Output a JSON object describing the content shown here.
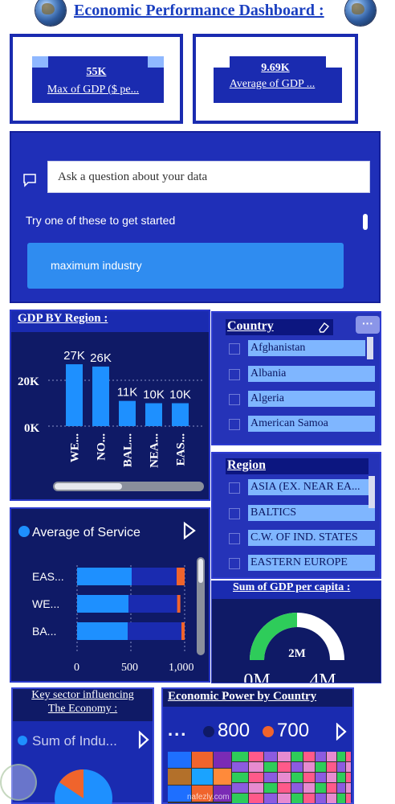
{
  "header": {
    "title": "Economic Performance Dashboard :"
  },
  "kpis": [
    {
      "value": "55K",
      "label": "Max of GDP ($ pe..."
    },
    {
      "value": "9.69K",
      "label": "Average of GDP ..."
    }
  ],
  "qna": {
    "placeholder": "Ask a question about your data",
    "tip": "Try one of these to get started",
    "suggestion": "maximum industry"
  },
  "gdp_by_region": {
    "title": "GDP BY Region :",
    "y_ticks": [
      "20K",
      "0K"
    ],
    "categories": [
      "WE...",
      "NO...",
      "BAL...",
      "NEA...",
      "EAS..."
    ],
    "value_labels": [
      "27K",
      "26K",
      "11K",
      "10K",
      "10K"
    ]
  },
  "country_slicer": {
    "title": "Country",
    "items": [
      "Afghanistan",
      "Albania",
      "Algeria",
      "American Samoa"
    ]
  },
  "region_slicer": {
    "title": "Region",
    "items": [
      "ASIA (EX. NEAR EA...",
      "BALTICS",
      "C.W. OF IND. STATES",
      "EASTERN EUROPE"
    ]
  },
  "service_chart": {
    "legend": "Average of Service",
    "categories": [
      "EAS...",
      "WE...",
      "BA..."
    ],
    "x_ticks": [
      "0",
      "500",
      "1,000"
    ]
  },
  "gauge": {
    "title": "Sum of GDP per capita :",
    "value": "2M",
    "min": "0M",
    "max": "4M"
  },
  "key_sector": {
    "title_line1": "Key sector influencing",
    "title_line2": "The Economy :",
    "legend": "Sum of Indu..."
  },
  "economic_power": {
    "title": "Economic Power by Country",
    "ellipsis": "...",
    "legend": [
      "800",
      "700"
    ]
  },
  "watermark": "nafezly.com",
  "colors": {
    "primary_blue": "#1a2bb0",
    "panel_dark": "#0f1a66",
    "bar_blue": "#1e90ff",
    "accent_orange": "#f0642c",
    "gauge_green": "#2ecc5a"
  },
  "chart_data": [
    {
      "type": "bar",
      "title": "GDP BY Region :",
      "categories": [
        "WE...",
        "NO...",
        "BAL...",
        "NEA...",
        "EAS..."
      ],
      "values": [
        27000,
        26000,
        11000,
        10000,
        10000
      ],
      "ylim": [
        0,
        30000
      ]
    },
    {
      "type": "bar",
      "title": "",
      "categories": [
        "EAS...",
        "WE...",
        "BA..."
      ],
      "series": [
        {
          "name": "Average of Service",
          "values": [
            1000,
            960,
            1000
          ]
        }
      ],
      "xlim": [
        0,
        1200
      ]
    }
  ]
}
